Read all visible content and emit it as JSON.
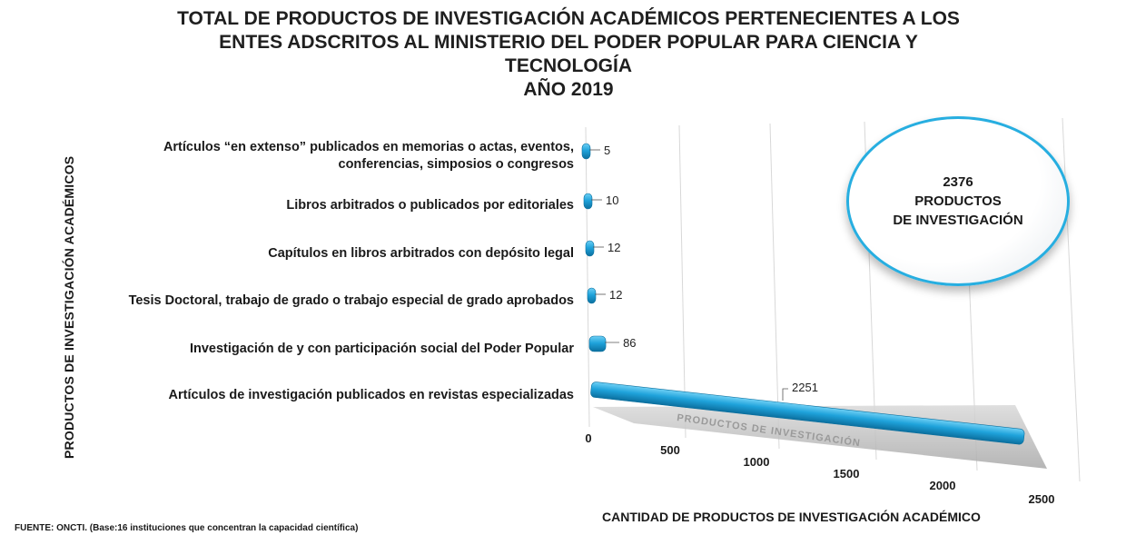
{
  "chart_data": {
    "type": "bar",
    "orientation": "horizontal",
    "title_lines": [
      "TOTAL DE PRODUCTOS DE INVESTIGACIÓN ACADÉMICOS PERTENECIENTES A LOS",
      "ENTES ADSCRITOS AL MINISTERIO DEL PODER POPULAR PARA CIENCIA Y",
      "TECNOLOGÍA",
      "AÑO 2019"
    ],
    "ylabel": "PRODUCTOS  DE INVESTIGACIÓN ACADÉMICOS",
    "xlabel": "CANTIDAD DE PRODUCTOS DE INVESTIGACIÓN ACADÉMICO",
    "categories": [
      "Artículos “en extenso” publicados en memorias o actas, eventos,\nconferencias, simposios o congresos",
      "Libros arbitrados o publicados por editoriales",
      "Capítulos en libros arbitrados con depósito legal",
      "Tesis Doctoral, trabajo de grado o trabajo especial de grado aprobados",
      "Investigación de y con participación social del Poder Popular",
      "Artículos de investigación publicados en revistas especializadas"
    ],
    "values": [
      5,
      10,
      12,
      12,
      86,
      2251
    ],
    "data_labels": [
      "5",
      "10",
      "12",
      "12",
      "86",
      "2251"
    ],
    "xlim": [
      0,
      2500
    ],
    "xticks": [
      "0",
      "500",
      "1000",
      "1500",
      "2000",
      "2500"
    ],
    "grid": true,
    "bar_color": "#1fa3db"
  },
  "total_box": {
    "number": "2376",
    "line2": "PRODUCTOS",
    "line3": "DE INVESTIGACIÓN"
  },
  "floor_text": "PRODUCTOS DE INVESTIGACIÓN",
  "source": "FUENTE: ONCTI. (Base:16 instituciones que concentran la capacidad científica)"
}
